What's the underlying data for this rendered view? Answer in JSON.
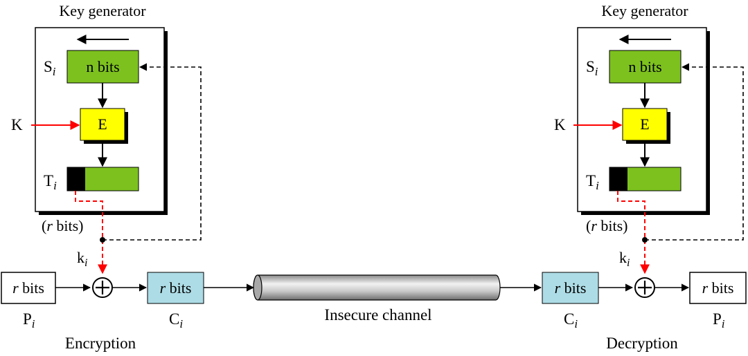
{
  "colors": {
    "shift_register": "#7DC11F",
    "encryptor": "#FFFF00",
    "ciphertext_box": "#ADDCE6",
    "key_line": "#FF0000",
    "channel_gray": "#BEBEBE",
    "black": "#000000"
  },
  "encryption_side": {
    "generator_title": "Key generator",
    "s_label": "S",
    "s_sub": "i",
    "s_box": "n bits",
    "key_label": "K",
    "e_box": "E",
    "t_label": "T",
    "t_sub": "i",
    "r_bits_prefix": "(",
    "r_bits_r": "r",
    "r_bits_suffix": " bits)",
    "k_label": "k",
    "k_sub": "i",
    "p_box_r": "r",
    "p_box_text": " bits",
    "p_label": "P",
    "p_sub": "i",
    "c_box_r": "r",
    "c_box_text": " bits",
    "c_label": "C",
    "c_sub": "i",
    "caption": "Encryption"
  },
  "channel": {
    "label": "Insecure channel"
  },
  "decryption_side": {
    "generator_title": "Key generator",
    "s_label": "S",
    "s_sub": "i",
    "s_box": "n bits",
    "key_label": "K",
    "e_box": "E",
    "t_label": "T",
    "t_sub": "i",
    "r_bits_prefix": "(",
    "r_bits_r": "r",
    "r_bits_suffix": " bits)",
    "k_label": "k",
    "k_sub": "i",
    "c_box_r": "r",
    "c_box_text": " bits",
    "c_label": "C",
    "c_sub": "i",
    "p_box_r": "r",
    "p_box_text": " bits",
    "p_label": "P",
    "p_sub": "i",
    "caption": "Decryption"
  },
  "xor_symbol": "+"
}
